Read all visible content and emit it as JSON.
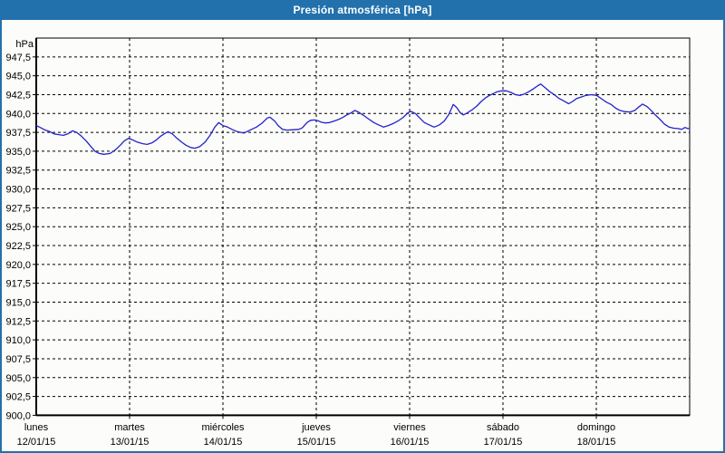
{
  "window": {
    "title": "Presión atmosférica [hPa]"
  },
  "colors": {
    "titlebar": "#2271ad",
    "window_border": "#2271ad",
    "background": "#fcfcfa",
    "series_line": "#2222cc",
    "grid": "#000000",
    "axis": "#000000",
    "label_text": "#000000",
    "title_text": "#ffffff"
  },
  "chart_data": {
    "type": "line",
    "title": "Presión atmosférica [hPa]",
    "unit_label": "hPa",
    "grid": "dashed",
    "legend": "none",
    "y_axis": {
      "min": 900,
      "max": 950,
      "grid_step": 2.5,
      "tick_labels": [
        "900,0",
        "902,5",
        "905,0",
        "907,5",
        "910,0",
        "912,5",
        "915,0",
        "917,5",
        "920,0",
        "922,5",
        "925,0",
        "927,5",
        "930,0",
        "932,5",
        "935,0",
        "937,5",
        "940,0",
        "942,5",
        "945,0",
        "947,5"
      ]
    },
    "x_axis": {
      "hours_total": 168,
      "day_width_hours": 24,
      "days": [
        {
          "name": "lunes",
          "date": "12/01/15"
        },
        {
          "name": "martes",
          "date": "13/01/15"
        },
        {
          "name": "miércoles",
          "date": "14/01/15"
        },
        {
          "name": "jueves",
          "date": "15/01/15"
        },
        {
          "name": "viernes",
          "date": "16/01/15"
        },
        {
          "name": "sábado",
          "date": "17/01/15"
        },
        {
          "name": "domingo",
          "date": "18/01/15"
        }
      ]
    },
    "series": [
      {
        "name": "Presión atmosférica",
        "color": "#2222cc",
        "points": [
          [
            0,
            938.4
          ],
          [
            1.2,
            938.1
          ],
          [
            2.3,
            937.8
          ],
          [
            3.5,
            937.6
          ],
          [
            4.6,
            937.3
          ],
          [
            5.8,
            937.2
          ],
          [
            7,
            937.1
          ],
          [
            8.1,
            937.3
          ],
          [
            9.3,
            937.7
          ],
          [
            10.4,
            937.5
          ],
          [
            11.6,
            937
          ],
          [
            12.8,
            936.4
          ],
          [
            13.9,
            935.7
          ],
          [
            15.1,
            935
          ],
          [
            16.2,
            934.7
          ],
          [
            17.4,
            934.6
          ],
          [
            19,
            934.7
          ],
          [
            20.4,
            935.2
          ],
          [
            21.6,
            935.8
          ],
          [
            22.7,
            936.4
          ],
          [
            23.7,
            936.7
          ],
          [
            24.8,
            936.5
          ],
          [
            26,
            936.2
          ],
          [
            27.4,
            936
          ],
          [
            28.5,
            935.9
          ],
          [
            29.7,
            936.1
          ],
          [
            30.9,
            936.5
          ],
          [
            32,
            937
          ],
          [
            33.2,
            937.4
          ],
          [
            33.9,
            937.6
          ],
          [
            35,
            937.3
          ],
          [
            36.2,
            936.7
          ],
          [
            37.4,
            936.2
          ],
          [
            38.5,
            935.8
          ],
          [
            39.7,
            935.5
          ],
          [
            40.8,
            935.4
          ],
          [
            42,
            935.6
          ],
          [
            43.4,
            936.2
          ],
          [
            44.8,
            937.2
          ],
          [
            45.9,
            938.2
          ],
          [
            46.9,
            938.8
          ],
          [
            48,
            938.4
          ],
          [
            49.2,
            938.2
          ],
          [
            50.3,
            937.9
          ],
          [
            51.7,
            937.6
          ],
          [
            53.4,
            937.4
          ],
          [
            55,
            937.8
          ],
          [
            56.6,
            938.2
          ],
          [
            58,
            938.7
          ],
          [
            59.4,
            939.4
          ],
          [
            60.1,
            939.5
          ],
          [
            61.3,
            939
          ],
          [
            62.2,
            938.4
          ],
          [
            63.3,
            937.9
          ],
          [
            64.5,
            937.8
          ],
          [
            66.1,
            937.85
          ],
          [
            67.5,
            937.9
          ],
          [
            68.4,
            938.1
          ],
          [
            69.6,
            938.8
          ],
          [
            70.5,
            939.1
          ],
          [
            71.5,
            939.15
          ],
          [
            72.4,
            939.05
          ],
          [
            73.3,
            938.85
          ],
          [
            74.3,
            938.75
          ],
          [
            75.4,
            938.8
          ],
          [
            76.6,
            939
          ],
          [
            77.7,
            939.2
          ],
          [
            78.9,
            939.5
          ],
          [
            79.8,
            939.8
          ],
          [
            81,
            940.1
          ],
          [
            81.9,
            940.4
          ],
          [
            82.8,
            940.2
          ],
          [
            84,
            939.8
          ],
          [
            85.4,
            939.3
          ],
          [
            86.8,
            938.8
          ],
          [
            88,
            938.5
          ],
          [
            89.3,
            938.2
          ],
          [
            90.5,
            938.4
          ],
          [
            91.9,
            938.7
          ],
          [
            93,
            939
          ],
          [
            94.4,
            939.5
          ],
          [
            95.6,
            940.1
          ],
          [
            96.3,
            940.3
          ],
          [
            97.5,
            940
          ],
          [
            98.6,
            939.4
          ],
          [
            99.8,
            938.8
          ],
          [
            101,
            938.5
          ],
          [
            102.3,
            938.2
          ],
          [
            103.7,
            938.5
          ],
          [
            104.9,
            939
          ],
          [
            106,
            939.8
          ],
          [
            106.8,
            940.7
          ],
          [
            107.2,
            941.2
          ],
          [
            108.1,
            940.8
          ],
          [
            109,
            940.1
          ],
          [
            109.8,
            939.8
          ],
          [
            110.9,
            940.1
          ],
          [
            112.1,
            940.5
          ],
          [
            113.3,
            941
          ],
          [
            114.4,
            941.6
          ],
          [
            115.6,
            942.1
          ],
          [
            116.5,
            942.4
          ],
          [
            117.4,
            942.6
          ],
          [
            118.6,
            942.9
          ],
          [
            119.7,
            943
          ],
          [
            120.9,
            943
          ],
          [
            122,
            942.8
          ],
          [
            123.2,
            942.5
          ],
          [
            124.4,
            942.4
          ],
          [
            125.6,
            942.6
          ],
          [
            126.7,
            942.9
          ],
          [
            127.9,
            943.3
          ],
          [
            129,
            943.7
          ],
          [
            129.7,
            943.9
          ],
          [
            130.9,
            943.4
          ],
          [
            132,
            942.9
          ],
          [
            133.2,
            942.5
          ],
          [
            134.4,
            942
          ],
          [
            135.5,
            941.7
          ],
          [
            136.9,
            941.3
          ],
          [
            137.9,
            941.6
          ],
          [
            139,
            942
          ],
          [
            140.2,
            942.2
          ],
          [
            141.3,
            942.4
          ],
          [
            142.7,
            942.5
          ],
          [
            144.1,
            942.4
          ],
          [
            145.5,
            941.9
          ],
          [
            146.6,
            941.5
          ],
          [
            147.8,
            941.2
          ],
          [
            149,
            940.7
          ],
          [
            150.1,
            940.4
          ],
          [
            151.3,
            940.25
          ],
          [
            152.7,
            940.2
          ],
          [
            153.9,
            940.4
          ],
          [
            155,
            940.9
          ],
          [
            155.9,
            941.25
          ],
          [
            157.1,
            940.9
          ],
          [
            158.3,
            940.3
          ],
          [
            159.2,
            939.8
          ],
          [
            160.4,
            939.2
          ],
          [
            161.5,
            938.6
          ],
          [
            162.7,
            938.2
          ],
          [
            163.9,
            938.05
          ],
          [
            165,
            938
          ],
          [
            165.9,
            937.9
          ],
          [
            166.8,
            938.15
          ],
          [
            167.5,
            938
          ],
          [
            168,
            938
          ]
        ]
      }
    ]
  }
}
